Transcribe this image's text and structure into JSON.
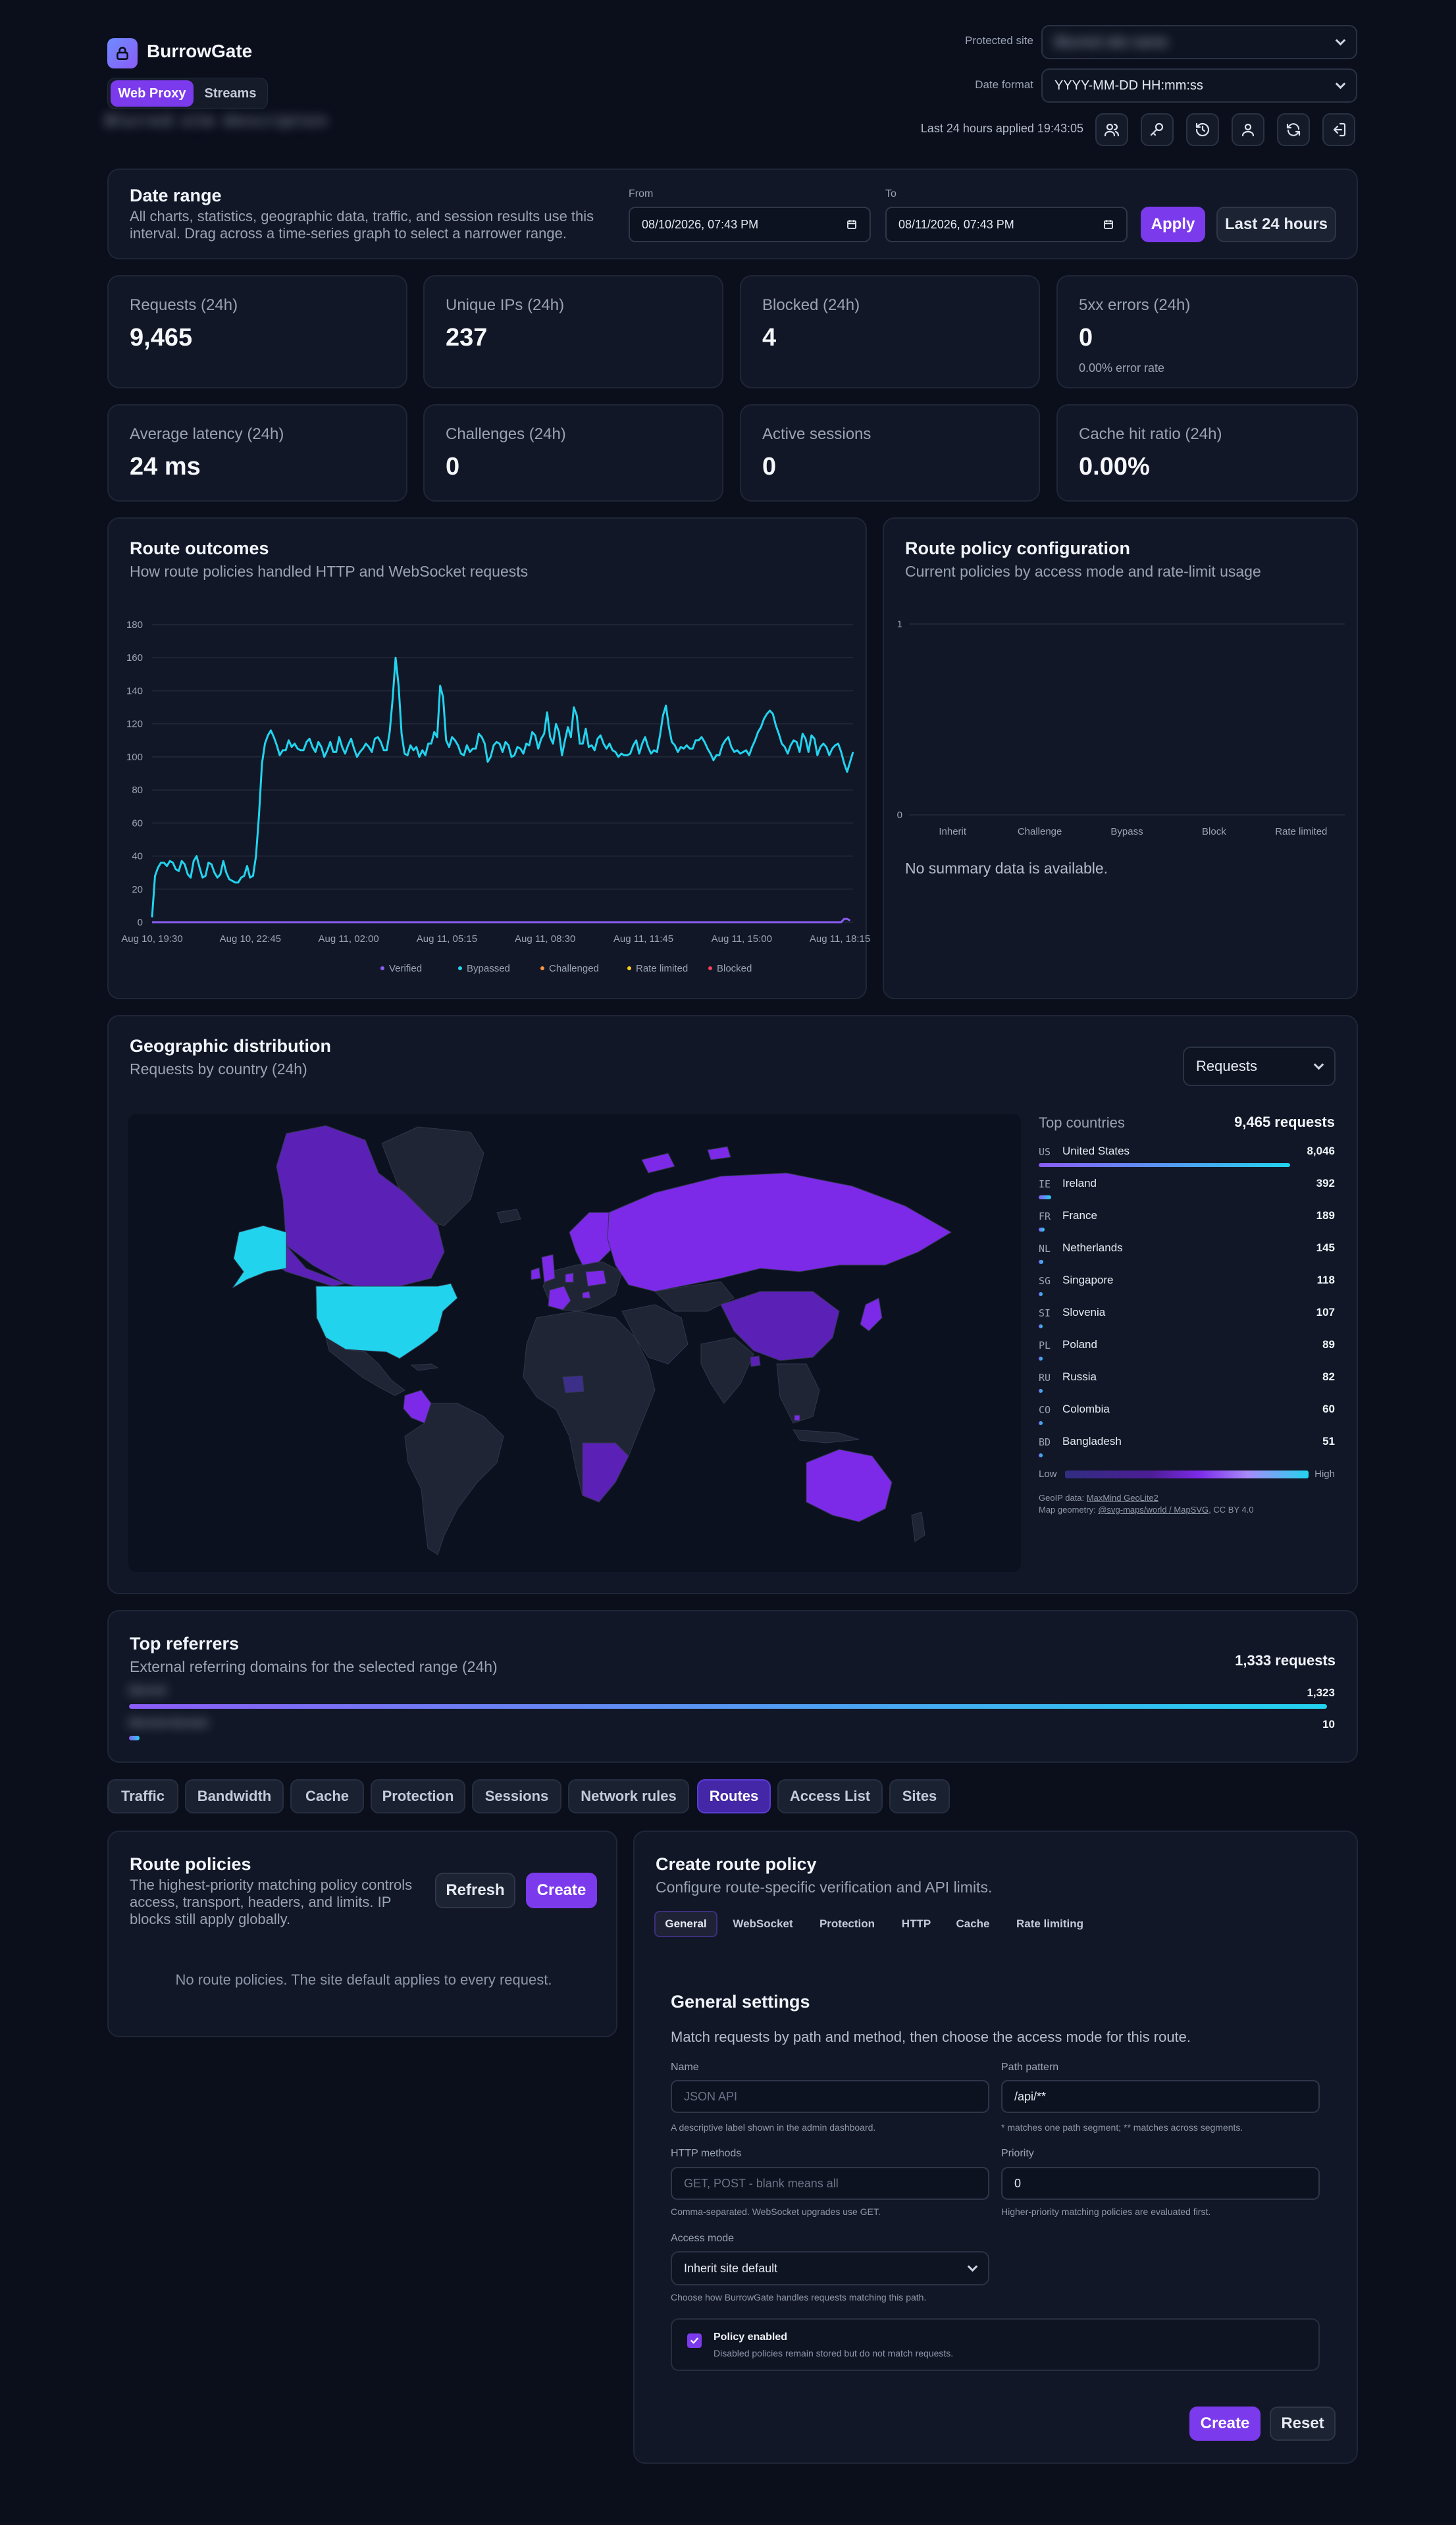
{
  "app": {
    "name": "BurrowGate",
    "logo": "shield-lock-icon"
  },
  "header": {
    "tabs": [
      {
        "label": "Web Proxy",
        "active": true
      },
      {
        "label": "Streams",
        "active": false
      }
    ],
    "subtitle_blurred": "Blurred site description",
    "protected_site_label": "Protected site",
    "protected_site_value": "Blurred site name",
    "date_format_label": "Date format",
    "date_format_value": "YYYY-MM-DD HH:mm:ss",
    "applied_text": "Last 24 hours applied 19:43:05",
    "icons": [
      "users-icon",
      "key-icon",
      "history-icon",
      "user-icon",
      "refresh-icon",
      "logout-icon"
    ]
  },
  "date_range": {
    "title": "Date range",
    "description": "All charts, statistics, geographic data, traffic, and session results use this interval. Drag across a time-series graph to select a narrower range.",
    "from_label": "From",
    "from_value": "08/10/2026, 07:43 PM",
    "to_label": "To",
    "to_value": "08/11/2026, 07:43 PM",
    "apply": "Apply",
    "last24": "Last 24 hours"
  },
  "stats": [
    {
      "label": "Requests (24h)",
      "value": "9,465"
    },
    {
      "label": "Unique IPs (24h)",
      "value": "237"
    },
    {
      "label": "Blocked (24h)",
      "value": "4"
    },
    {
      "label": "5xx errors (24h)",
      "value": "0",
      "note": "0.00% error rate"
    },
    {
      "label": "Average latency (24h)",
      "value": "24 ms"
    },
    {
      "label": "Challenges (24h)",
      "value": "0"
    },
    {
      "label": "Active sessions",
      "value": "0"
    },
    {
      "label": "Cache hit ratio (24h)",
      "value": "0.00%"
    }
  ],
  "route_outcomes": {
    "title": "Route outcomes",
    "subtitle": "How route policies handled HTTP and WebSocket requests"
  },
  "chart_data": [
    {
      "type": "line",
      "title": "Route outcomes",
      "ylim": [
        0,
        180
      ],
      "yticks": [
        "0",
        "20",
        "40",
        "60",
        "80",
        "100",
        "120",
        "140",
        "160",
        "180"
      ],
      "xticks": [
        "Aug 10, 19:30",
        "Aug 10, 22:45",
        "Aug 11, 02:00",
        "Aug 11, 05:15",
        "Aug 11, 08:30",
        "Aug 11, 11:45",
        "Aug 11, 15:00",
        "Aug 11, 18:15"
      ],
      "grid": true,
      "legend": "bottom",
      "series": [
        {
          "name": "Verified",
          "color": "#8b5cf6",
          "values": [
            0,
            0,
            0,
            0,
            0,
            0,
            0,
            0,
            0,
            0,
            0,
            0,
            0,
            0,
            0,
            0,
            0,
            0,
            0,
            0,
            0,
            0,
            0,
            0,
            0,
            0,
            0,
            0,
            0,
            0,
            0,
            0,
            0,
            0,
            0,
            0,
            0,
            0,
            0,
            0,
            0,
            0,
            0,
            0,
            0,
            0,
            0,
            0,
            0,
            0,
            0,
            0,
            0,
            0,
            0,
            0,
            0,
            0,
            0,
            0,
            0,
            0,
            0,
            0,
            0,
            0,
            0,
            0,
            0,
            0,
            0,
            0,
            0,
            0,
            0,
            0,
            0,
            0,
            0,
            0,
            0,
            0,
            0,
            0,
            0,
            0,
            0,
            0,
            0,
            0,
            0,
            0,
            0,
            0,
            0,
            0,
            0,
            0,
            0,
            0,
            0,
            0,
            0,
            0,
            0,
            0,
            0,
            0,
            0,
            0,
            0,
            0,
            0,
            0,
            0,
            0,
            0,
            0,
            0,
            0,
            0,
            0,
            0,
            0,
            0,
            0,
            0,
            0,
            0,
            0,
            0,
            0,
            0,
            0,
            0,
            0,
            0,
            0,
            0,
            0,
            0,
            0,
            0,
            0,
            0,
            0,
            0,
            0,
            0,
            0,
            0,
            0,
            0,
            0,
            0,
            0,
            0,
            0,
            0,
            0,
            0,
            0,
            0,
            0,
            0,
            0,
            0,
            0,
            0,
            0,
            0,
            0,
            0,
            0,
            0,
            0,
            0,
            0,
            0,
            0,
            0,
            0,
            0,
            0,
            0,
            0,
            0,
            0,
            0,
            0,
            0,
            0,
            0,
            0,
            0,
            0,
            0,
            0,
            0,
            0,
            0,
            0,
            0,
            0,
            0,
            0,
            0,
            0,
            0,
            0,
            0,
            0,
            0,
            0,
            0,
            0,
            0,
            0,
            0,
            0,
            0,
            0,
            0,
            0,
            0,
            0,
            0,
            0,
            0,
            0,
            0,
            0,
            0,
            2,
            2,
            1
          ]
        },
        {
          "name": "Bypassed",
          "color": "#22d3ee",
          "values": [
            3,
            28,
            33,
            36,
            36,
            34,
            37,
            36,
            32,
            31,
            37,
            35,
            29,
            27,
            37,
            40,
            33,
            27,
            28,
            36,
            35,
            30,
            27,
            29,
            37,
            30,
            26,
            25,
            24,
            24,
            27,
            28,
            34,
            27,
            28,
            40,
            65,
            96,
            108,
            113,
            116,
            112,
            107,
            101,
            104,
            104,
            110,
            106,
            108,
            105,
            104,
            104,
            109,
            111,
            106,
            103,
            109,
            106,
            100,
            104,
            109,
            103,
            103,
            112,
            106,
            102,
            107,
            111,
            105,
            100,
            103,
            105,
            108,
            106,
            103,
            111,
            112,
            109,
            104,
            104,
            115,
            135,
            160,
            143,
            114,
            102,
            101,
            107,
            104,
            106,
            100,
            104,
            101,
            108,
            108,
            115,
            112,
            143,
            136,
            110,
            106,
            112,
            110,
            107,
            102,
            101,
            107,
            103,
            105,
            105,
            114,
            112,
            108,
            97,
            100,
            107,
            109,
            108,
            103,
            109,
            107,
            100,
            101,
            106,
            105,
            102,
            108,
            107,
            115,
            113,
            105,
            111,
            114,
            127,
            112,
            108,
            120,
            115,
            101,
            110,
            118,
            112,
            130,
            125,
            108,
            108,
            117,
            106,
            107,
            104,
            111,
            113,
            108,
            105,
            108,
            104,
            103,
            100,
            102,
            101,
            101,
            102,
            107,
            110,
            102,
            108,
            112,
            106,
            102,
            104,
            103,
            113,
            125,
            131,
            118,
            109,
            107,
            103,
            106,
            105,
            107,
            105,
            105,
            110,
            110,
            112,
            109,
            105,
            102,
            98,
            101,
            101,
            107,
            110,
            112,
            106,
            103,
            104,
            102,
            103,
            104,
            101,
            106,
            110,
            115,
            118,
            123,
            126,
            128,
            126,
            119,
            114,
            108,
            106,
            102,
            107,
            110,
            109,
            103,
            114,
            111,
            103,
            113,
            111,
            101,
            106,
            108,
            106,
            101,
            105,
            107,
            108,
            103,
            96,
            91,
            97,
            103
          ]
        },
        {
          "name": "Challenged",
          "color": "#fb923c",
          "values": []
        },
        {
          "name": "Rate limited",
          "color": "#facc15",
          "values": []
        },
        {
          "name": "Blocked",
          "color": "#f43f5e",
          "values": []
        }
      ]
    },
    {
      "type": "bar",
      "title": "Route policy configuration",
      "categories": [
        "Inherit",
        "Challenge",
        "Bypass",
        "Block",
        "Rate limited"
      ],
      "values": [
        0,
        0,
        0,
        0,
        0
      ],
      "ylim": [
        0,
        1
      ],
      "yticks": [
        "0",
        "1"
      ],
      "empty_message": "No summary data is available."
    }
  ],
  "route_policy_config": {
    "title": "Route policy configuration",
    "subtitle": "Current policies by access mode and rate-limit usage"
  },
  "geo": {
    "title": "Geographic distribution",
    "subtitle": "Requests by country (24h)",
    "metric": "Requests",
    "top_label": "Top countries",
    "total": "9,465 requests",
    "countries": [
      {
        "code": "US",
        "name": "United States",
        "count": "8,046",
        "share": 1.0
      },
      {
        "code": "IE",
        "name": "Ireland",
        "count": "392",
        "share": 0.049
      },
      {
        "code": "FR",
        "name": "France",
        "count": "189",
        "share": 0.023
      },
      {
        "code": "NL",
        "name": "Netherlands",
        "count": "145",
        "share": 0.018
      },
      {
        "code": "SG",
        "name": "Singapore",
        "count": "118",
        "share": 0.015
      },
      {
        "code": "SI",
        "name": "Slovenia",
        "count": "107",
        "share": 0.013
      },
      {
        "code": "PL",
        "name": "Poland",
        "count": "89",
        "share": 0.011
      },
      {
        "code": "RU",
        "name": "Russia",
        "count": "82",
        "share": 0.01
      },
      {
        "code": "CO",
        "name": "Colombia",
        "count": "60",
        "share": 0.007
      },
      {
        "code": "BD",
        "name": "Bangladesh",
        "count": "51",
        "share": 0.006
      }
    ],
    "legend_low": "Low",
    "legend_high": "High",
    "credit_geoip_prefix": "GeoIP data: ",
    "credit_geoip_link": "MaxMind GeoLite2",
    "credit_map_prefix": "Map geometry: ",
    "credit_map_link": "@svg-maps/world / MapSVG",
    "credit_map_suffix": ", CC BY 4.0",
    "colors": {
      "high": "#22d3ee",
      "mid": "#7c2ae8",
      "low": "#312e81",
      "none": "#1e2436"
    }
  },
  "referrers": {
    "title": "Top referrers",
    "subtitle": "External referring domains for the selected range (24h)",
    "total": "1,333 requests",
    "items": [
      {
        "domain": "blurred",
        "count": "1,323",
        "share": 1.0
      },
      {
        "domain": "blurred-domain",
        "count": "10",
        "share": 0.008
      }
    ]
  },
  "tabs": [
    {
      "label": "Traffic",
      "active": false
    },
    {
      "label": "Bandwidth",
      "active": false
    },
    {
      "label": "Cache",
      "active": false
    },
    {
      "label": "Protection",
      "active": false
    },
    {
      "label": "Sessions",
      "active": false
    },
    {
      "label": "Network rules",
      "active": false
    },
    {
      "label": "Routes",
      "active": true
    },
    {
      "label": "Access List",
      "active": false
    },
    {
      "label": "Sites",
      "active": false
    }
  ],
  "route_policies": {
    "title": "Route policies",
    "description": "The highest-priority matching policy controls access, transport, headers, and limits. IP blocks still apply globally.",
    "refresh": "Refresh",
    "create": "Create",
    "empty": "No route policies. The site default applies to every request."
  },
  "create_policy": {
    "title": "Create route policy",
    "subtitle": "Configure route-specific verification and API limits.",
    "subtabs": [
      {
        "label": "General",
        "active": true
      },
      {
        "label": "WebSocket",
        "active": false
      },
      {
        "label": "Protection",
        "active": false
      },
      {
        "label": "HTTP",
        "active": false
      },
      {
        "label": "Cache",
        "active": false
      },
      {
        "label": "Rate limiting",
        "active": false
      }
    ],
    "section_title": "General settings",
    "section_sub": "Match requests by path and method, then choose the access mode for this route.",
    "name_label": "Name",
    "name_placeholder": "JSON API",
    "name_help": "A descriptive label shown in the admin dashboard.",
    "path_label": "Path pattern",
    "path_value": "/api/**",
    "path_help": "* matches one path segment; ** matches across segments.",
    "methods_label": "HTTP methods",
    "methods_placeholder": "GET, POST - blank means all",
    "methods_help": "Comma-separated. WebSocket upgrades use GET.",
    "priority_label": "Priority",
    "priority_value": "0",
    "priority_help": "Higher-priority matching policies are evaluated first.",
    "access_label": "Access mode",
    "access_value": "Inherit site default",
    "access_help": "Choose how BurrowGate handles requests matching this path.",
    "enabled_label": "Policy enabled",
    "enabled_help": "Disabled policies remain stored but do not match requests.",
    "enabled": true,
    "create": "Create",
    "reset": "Reset"
  }
}
